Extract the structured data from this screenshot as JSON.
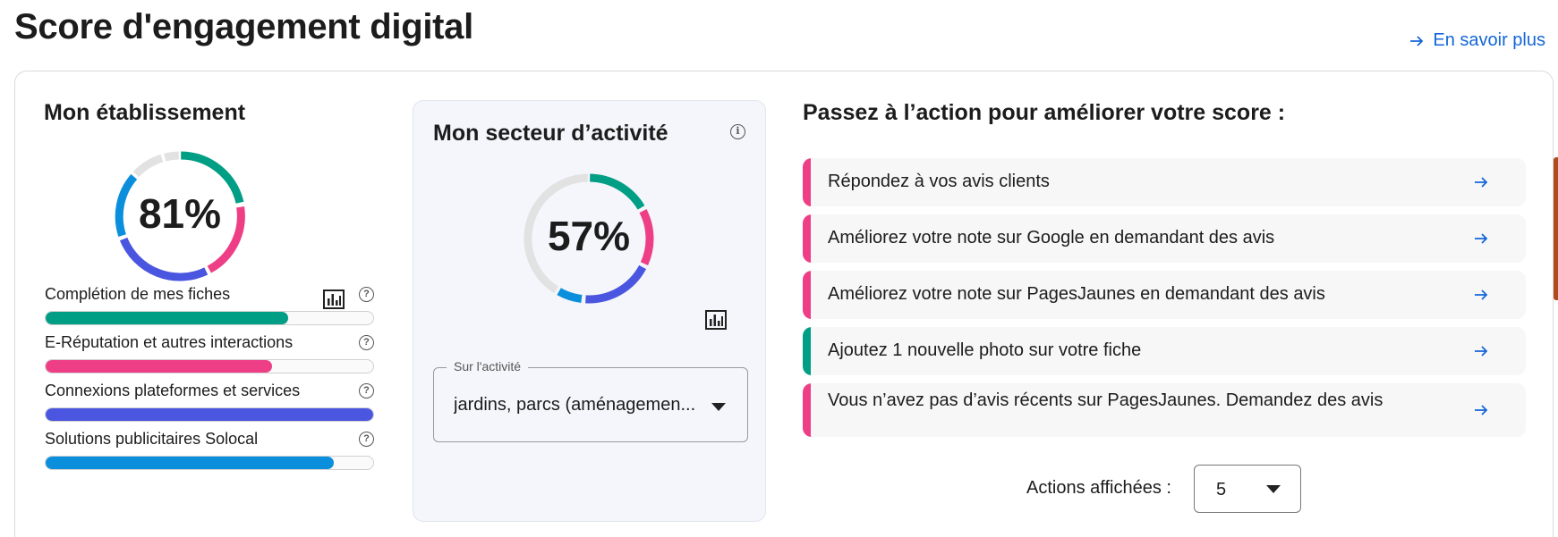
{
  "header": {
    "title": "Score d'engagement digital",
    "learn_more": "En savoir plus"
  },
  "establishment": {
    "title": "Mon établissement",
    "score": "81%",
    "score_value": 81,
    "metrics": [
      {
        "label": "Complétion de mes fiches",
        "percent": 74,
        "color": "#009e84"
      },
      {
        "label": "E-Réputation et autres interactions",
        "percent": 69,
        "color": "#ee3f86"
      },
      {
        "label": "Connexions plateformes et services",
        "percent": 100,
        "color": "#4a55e0"
      },
      {
        "label": "Solutions publicitaires Solocal",
        "percent": 88,
        "color": "#0b8fdc"
      }
    ]
  },
  "sector": {
    "title": "Mon secteur d’activité",
    "score": "57%",
    "score_value": 57,
    "select_legend": "Sur l'activité",
    "select_value": "jardins, parcs (aménagemen..."
  },
  "actions": {
    "title": "Passez à l’action pour améliorer votre score :",
    "items": [
      {
        "label": "Répondez à vos avis clients",
        "color": "#ee3f86"
      },
      {
        "label": "Améliorez votre note sur Google en demandant des avis",
        "color": "#ee3f86"
      },
      {
        "label": "Améliorez votre note sur PagesJaunes en demandant des avis",
        "color": "#ee3f86"
      },
      {
        "label": "Ajoutez 1 nouvelle photo sur votre fiche",
        "color": "#009e84"
      },
      {
        "label": "Vous n’avez pas d’avis récents sur PagesJaunes. Demandez des avis",
        "color": "#ee3f86"
      }
    ],
    "shown_label": "Actions affichées :",
    "shown_value": "5"
  },
  "icons": {
    "learn_more": "arrow-right-icon",
    "chart": "bar-chart-icon",
    "help": "question-circle-icon",
    "info": "info-circle-icon",
    "action": "arrow-right-icon",
    "dropdown": "caret-down-icon"
  }
}
